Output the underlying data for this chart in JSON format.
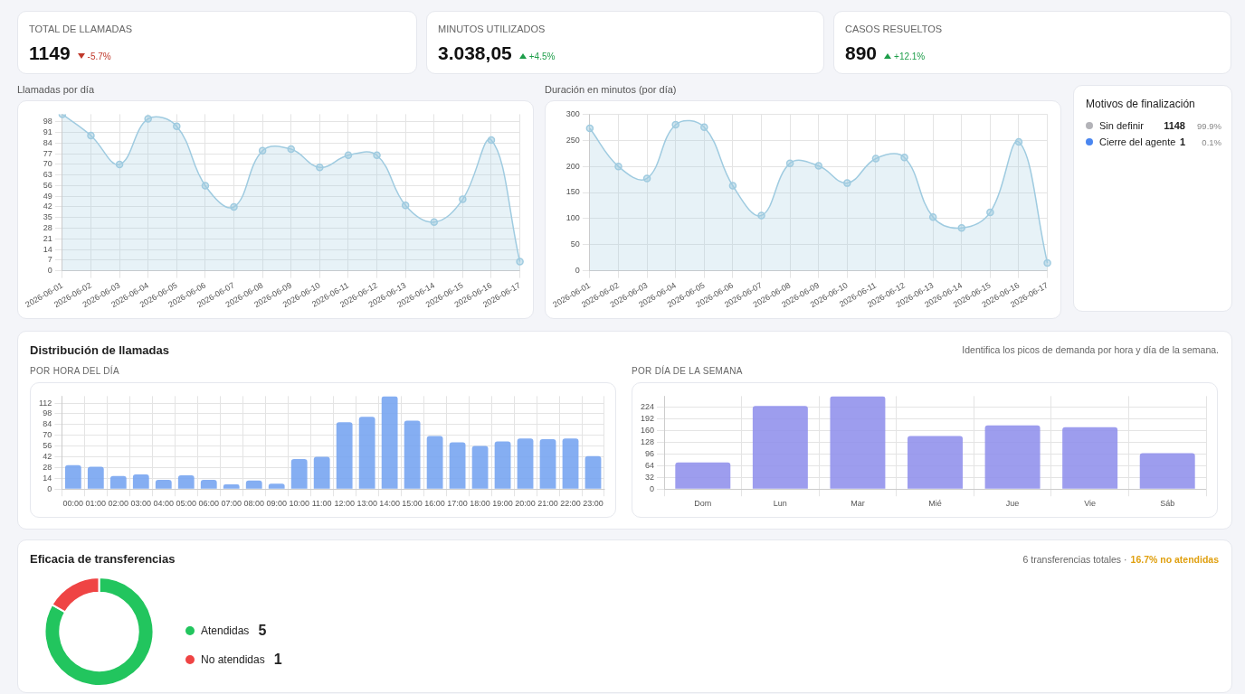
{
  "chart_data": [
    {
      "type": "other",
      "title": "TOTAL DE LLAMADAS",
      "annotations": [
        "1149",
        "-5.7%"
      ]
    },
    {
      "type": "other",
      "title": "MINUTOS UTILIZADOS",
      "annotations": [
        "3.038,05",
        "+4.5%"
      ]
    },
    {
      "type": "other",
      "title": "CASOS RESUELTOS",
      "annotations": [
        "890",
        "+12.1%"
      ]
    },
    {
      "type": "area",
      "title": "Llamadas por día",
      "categories": [
        "2026-06-01",
        "2026-06-02",
        "2026-06-03",
        "2026-06-04",
        "2026-06-05",
        "2026-06-06",
        "2026-06-07",
        "2026-06-08",
        "2026-06-09",
        "2026-06-10",
        "2026-06-11",
        "2026-06-12",
        "2026-06-13",
        "2026-06-14",
        "2026-06-15",
        "2026-06-16",
        "2026-06-17"
      ],
      "values": [
        103,
        89,
        70,
        100,
        95,
        56,
        42,
        79,
        80,
        68,
        76,
        76,
        43,
        32,
        47,
        86,
        6
      ],
      "color": "#9fcbe0",
      "marker": "circle",
      "grid": true,
      "ylim": [
        0,
        103
      ],
      "yticks": [
        0,
        7,
        14,
        21,
        28,
        35,
        42,
        49,
        56,
        63,
        70,
        77,
        84,
        91,
        98
      ]
    },
    {
      "type": "area",
      "title": "Duración en minutos (por día)",
      "categories": [
        "2026-06-01",
        "2026-06-02",
        "2026-06-03",
        "2026-06-04",
        "2026-06-05",
        "2026-06-06",
        "2026-06-07",
        "2026-06-08",
        "2026-06-09",
        "2026-06-10",
        "2026-06-11",
        "2026-06-12",
        "2026-06-13",
        "2026-06-14",
        "2026-06-15",
        "2026-06-16",
        "2026-06-17"
      ],
      "values": [
        273,
        200,
        177,
        280,
        275,
        163,
        106,
        206,
        201,
        168,
        215,
        217,
        103,
        82,
        112,
        247,
        15
      ],
      "color": "#9fcbe0",
      "marker": "circle",
      "grid": true,
      "ylim": [
        0,
        300
      ],
      "yticks": [
        0,
        50,
        100,
        150,
        200,
        250,
        300
      ]
    },
    {
      "type": "other",
      "title": "Motivos de finalización",
      "annotations": [
        "Sin definir",
        "1148",
        "99.9%",
        "Cierre del agente",
        "1",
        "0.1%"
      ],
      "colors": [
        "#b3b3b8",
        "#4a86f0"
      ]
    },
    {
      "type": "other",
      "title": "Distribución de llamadas",
      "subtitle": "Identifica los picos de demanda por hora y día de la semana."
    },
    {
      "type": "bar",
      "title": "POR HORA DEL DÍA",
      "categories": [
        "00:00",
        "01:00",
        "02:00",
        "03:00",
        "04:00",
        "05:00",
        "06:00",
        "07:00",
        "08:00",
        "09:00",
        "10:00",
        "11:00",
        "12:00",
        "13:00",
        "14:00",
        "15:00",
        "16:00",
        "17:00",
        "18:00",
        "19:00",
        "20:00",
        "21:00",
        "22:00",
        "23:00"
      ],
      "values": [
        31,
        29,
        17,
        19,
        12,
        18,
        12,
        6,
        11,
        7,
        39,
        42,
        87,
        94,
        121,
        89,
        69,
        61,
        56,
        62,
        66,
        65,
        66,
        43
      ],
      "color": "#74a3f0",
      "grid": true,
      "ylim": [
        0,
        121
      ],
      "yticks": [
        0,
        14,
        28,
        42,
        56,
        70,
        84,
        98,
        112
      ]
    },
    {
      "type": "bar",
      "title": "POR DÍA DE LA SEMANA",
      "categories": [
        "Dom",
        "Lun",
        "Mar",
        "Mié",
        "Jue",
        "Vie",
        "Sáb"
      ],
      "values": [
        73,
        227,
        254,
        145,
        174,
        169,
        98
      ],
      "color": "#8f90ec",
      "grid": true,
      "ylim": [
        0,
        254
      ],
      "yticks": [
        0,
        32,
        64,
        96,
        128,
        160,
        192,
        224
      ]
    },
    {
      "type": "donut",
      "title": "Eficacia de transferencias",
      "annotations": [
        "6 transferencias totales ·",
        "16.7% no atendidas",
        "5",
        "1"
      ],
      "categories": [
        "Atendidas",
        "No atendidas"
      ],
      "values": [
        83.3,
        16.7
      ],
      "colors": [
        "#22c55e",
        "#ef4444"
      ],
      "legend": "right"
    }
  ]
}
